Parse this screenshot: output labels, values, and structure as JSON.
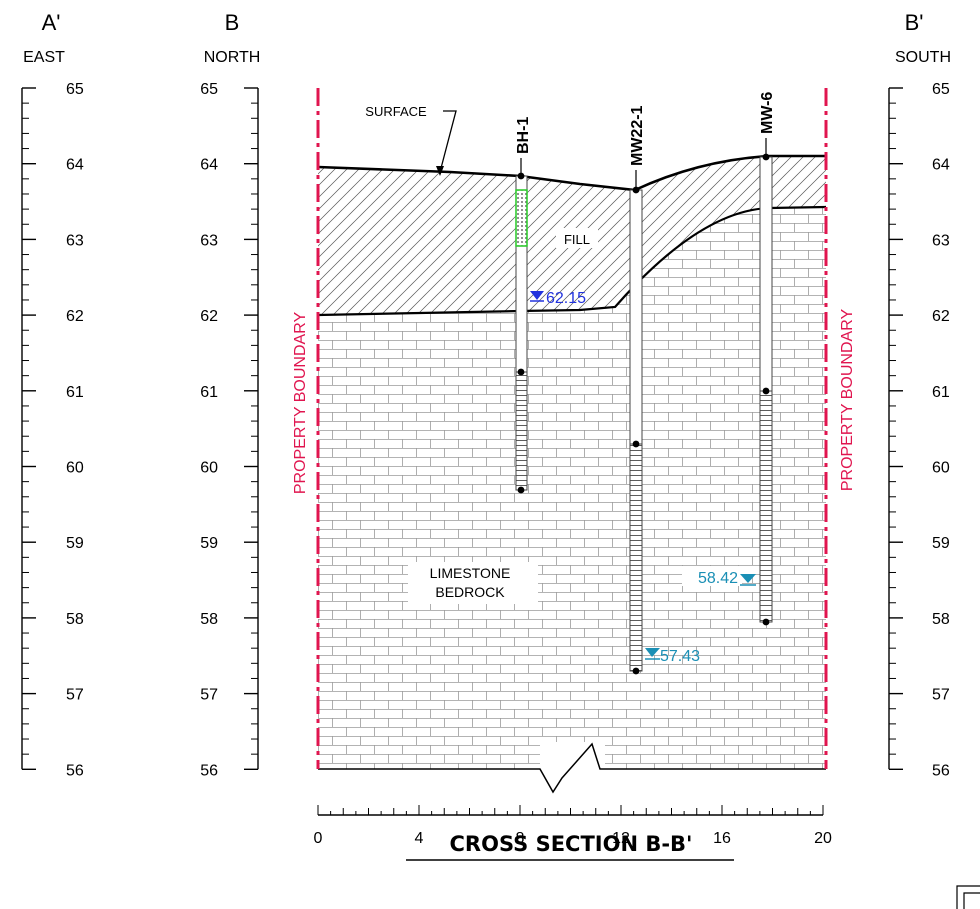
{
  "scales": {
    "left_outer": {
      "letter": "A'",
      "direction": "EAST"
    },
    "left_inner": {
      "letter": "B",
      "direction": "NORTH"
    },
    "right": {
      "letter": "B'",
      "direction": "SOUTH"
    },
    "elevation_ticks": [
      "65",
      "64",
      "63",
      "62",
      "61",
      "60",
      "59",
      "58",
      "57",
      "56"
    ]
  },
  "labels": {
    "surface": "SURFACE",
    "fill": "FILL",
    "bedrock_line1": "LIMESTONE",
    "bedrock_line2": "BEDROCK",
    "property_boundary": "PROPERTY BOUNDARY"
  },
  "wells": [
    {
      "name": "BH-1",
      "water_level": "62.15"
    },
    {
      "name": "MW22-1",
      "water_level": "57.43"
    },
    {
      "name": "MW-6",
      "water_level": "58.42"
    }
  ],
  "horizontal_scale": {
    "ticks": [
      "0",
      "4",
      "8",
      "12",
      "16",
      "20"
    ]
  },
  "title": "CROSS SECTION B-B'",
  "colors": {
    "boundary": "#e0154f",
    "water_bh1": "#2233dd",
    "water_other": "#1a8fb5",
    "screen_highlight": "#33cc33"
  }
}
